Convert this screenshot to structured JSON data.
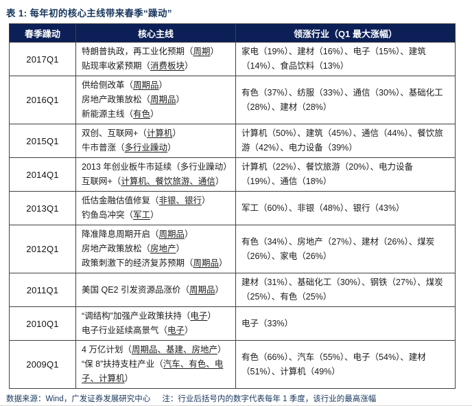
{
  "title": "表 1:  每年初的核心主线带来春季“躁动”",
  "colors": {
    "header_bg": "#0c2057",
    "accent": "#17365d",
    "border": "#3f3f3f"
  },
  "table": {
    "headers": [
      "春季躁动",
      "核心主线",
      "领涨行业（Q1 最大涨幅）"
    ],
    "rows": [
      {
        "quarter": "2017Q1",
        "themes": [
          [
            {
              "t": "特朗普执政，再工业化预期（"
            },
            {
              "t": "周期",
              "u": true
            },
            {
              "t": "）"
            }
          ],
          [
            {
              "t": "贴现率收紧预期（"
            },
            {
              "t": "消费板块",
              "u": true
            },
            {
              "t": "）"
            }
          ]
        ],
        "industries": "家电（19%）、建材（16%）、电子（15%）、建筑（14%）、食品饮料（13%）"
      },
      {
        "quarter": "2016Q1",
        "themes": [
          [
            {
              "t": "供给侧改革（"
            },
            {
              "t": "周期品",
              "u": true
            },
            {
              "t": "）"
            }
          ],
          [
            {
              "t": "房地产政策放松（"
            },
            {
              "t": "周期品",
              "u": true
            },
            {
              "t": "）"
            }
          ],
          [
            {
              "t": "新能源主线（"
            },
            {
              "t": "有色",
              "u": true
            },
            {
              "t": "）"
            }
          ]
        ],
        "industries": "有色（37%）、纺服（33%）、通信（30%）、基础化工（28%）、建材（28%）"
      },
      {
        "quarter": "2015Q1",
        "themes": [
          [
            {
              "t": "双创、互联网+（"
            },
            {
              "t": "计算机",
              "u": true
            },
            {
              "t": "）"
            }
          ],
          [
            {
              "t": "牛市普涨（"
            },
            {
              "t": "多行业躁动",
              "u": true
            },
            {
              "t": "）"
            }
          ]
        ],
        "industries": "计算机（50%）、建筑（45%）、通信（44%）、餐饮旅游（42%）、电力设备（39%）"
      },
      {
        "quarter": "2014Q1",
        "themes": [
          [
            {
              "t": "2013 年创业板牛市延续（多行业躁动）"
            }
          ],
          [
            {
              "t": "互联网+（"
            },
            {
              "t": "计算机、餐饮旅游、通信",
              "u": true
            },
            {
              "t": "）"
            }
          ]
        ],
        "industries": "计算机（22%）、餐饮旅游（20%）、电力设备（19%）、通信（18%）"
      },
      {
        "quarter": "2013Q1",
        "themes": [
          [
            {
              "t": "低估金融估值修复（"
            },
            {
              "t": "非银、银行",
              "u": true
            },
            {
              "t": "）"
            }
          ],
          [
            {
              "t": "钓鱼岛冲突（"
            },
            {
              "t": "军工",
              "u": true
            },
            {
              "t": "）"
            }
          ]
        ],
        "industries": "军工（60%）、非银（48%）、银行（43%）"
      },
      {
        "quarter": "2012Q1",
        "themes": [
          [
            {
              "t": "降准降息周期开启（"
            },
            {
              "t": "周期品",
              "u": true
            },
            {
              "t": "）"
            }
          ],
          [
            {
              "t": "房地产政策放松（"
            },
            {
              "t": "房地产",
              "u": true
            },
            {
              "t": "）"
            }
          ],
          [
            {
              "t": "政策刺激下的经济复苏预期（"
            },
            {
              "t": "周期品",
              "u": true
            },
            {
              "t": "）"
            }
          ]
        ],
        "industries": "有色（34%）、房地产（27%）、建材（26%）、煤炭（26%）、家电（26%）"
      },
      {
        "quarter": "2011Q1",
        "themes": [
          [
            {
              "t": "美国 QE2 引发资源品涨价（"
            },
            {
              "t": "周期品",
              "u": true
            },
            {
              "t": "）"
            }
          ]
        ],
        "industries": "建材（31%）、基础化工（30%）、钢铁（27%）、煤炭（25%）、有色（25%）"
      },
      {
        "quarter": "2010Q1",
        "themes": [
          [
            {
              "t": "“调结构”加强产业政策扶持（"
            },
            {
              "t": "电子",
              "u": true
            },
            {
              "t": "）"
            }
          ],
          [
            {
              "t": "电子行业延续高景气（"
            },
            {
              "t": "电子",
              "u": true
            },
            {
              "t": "）"
            }
          ]
        ],
        "industries": "电子（33%）"
      },
      {
        "quarter": "2009Q1",
        "themes": [
          [
            {
              "t": "4 万亿计划（"
            },
            {
              "t": "周期品、基建、房地产",
              "u": true
            },
            {
              "t": "）"
            }
          ],
          [
            {
              "t": "“保 8”扶持支柱产业（"
            },
            {
              "t": "汽车、有色、电子、计算机",
              "u": true
            },
            {
              "t": "）"
            }
          ]
        ],
        "industries": "有色（66%）、汽车（55%）、电子（54%）、建材（51%）、计算机（49%）"
      }
    ]
  },
  "footer": {
    "source": "数据来源：Wind，广发证券发展研究中心",
    "note": "注：行业后括号内的数字代表每年 1 季度，该行业的最高涨幅"
  }
}
